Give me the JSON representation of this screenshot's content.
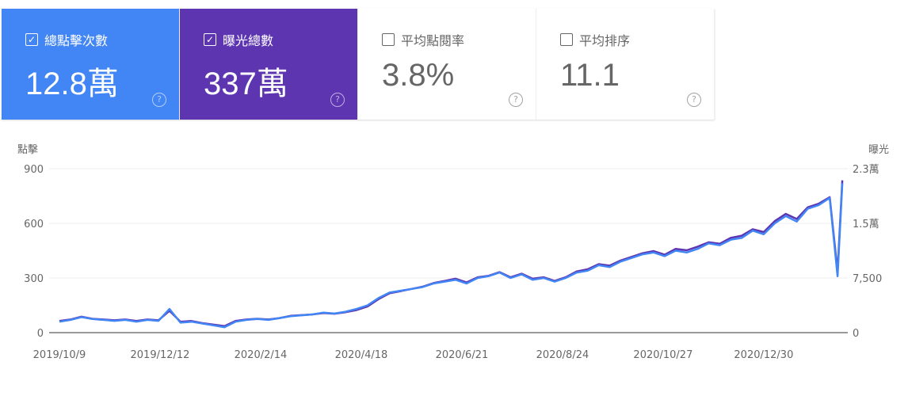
{
  "cards": [
    {
      "label": "總點擊次數",
      "value": "12.8萬",
      "checked": true,
      "color": "#4285f4"
    },
    {
      "label": "曝光總數",
      "value": "337萬",
      "checked": true,
      "color": "#5e35b1"
    },
    {
      "label": "平均點閱率",
      "value": "3.8%",
      "checked": false
    },
    {
      "label": "平均排序",
      "value": "11.1",
      "checked": false
    }
  ],
  "chart_data": {
    "type": "line",
    "y_left_label": "點擊",
    "y_right_label": "曝光",
    "y_left_ticks": [
      "900",
      "600",
      "300",
      "0"
    ],
    "y_right_ticks": [
      "2.3萬",
      "1.5萬",
      "7,500",
      "0"
    ],
    "ylim_left": [
      0,
      900
    ],
    "ylim_right": [
      0,
      22500
    ],
    "x_ticks": [
      "2019/10/9",
      "2019/12/12",
      "2020/2/14",
      "2020/4/18",
      "2020/6/21",
      "2020/8/24",
      "2020/10/27",
      "2020/12/30"
    ],
    "grid": true,
    "x": [
      "2019-10-09",
      "2019-10-16",
      "2019-10-23",
      "2019-10-30",
      "2019-11-06",
      "2019-11-13",
      "2019-11-20",
      "2019-11-27",
      "2019-12-04",
      "2019-12-11",
      "2019-12-18",
      "2019-12-25",
      "2020-01-01",
      "2020-01-08",
      "2020-01-15",
      "2020-01-22",
      "2020-01-29",
      "2020-02-05",
      "2020-02-12",
      "2020-02-19",
      "2020-02-26",
      "2020-03-04",
      "2020-03-11",
      "2020-03-18",
      "2020-03-25",
      "2020-04-01",
      "2020-04-08",
      "2020-04-15",
      "2020-04-22",
      "2020-04-29",
      "2020-05-06",
      "2020-05-13",
      "2020-05-20",
      "2020-05-27",
      "2020-06-03",
      "2020-06-10",
      "2020-06-17",
      "2020-06-24",
      "2020-07-01",
      "2020-07-08",
      "2020-07-15",
      "2020-07-22",
      "2020-07-29",
      "2020-08-05",
      "2020-08-12",
      "2020-08-19",
      "2020-08-26",
      "2020-09-02",
      "2020-09-09",
      "2020-09-16",
      "2020-09-23",
      "2020-09-30",
      "2020-10-07",
      "2020-10-14",
      "2020-10-21",
      "2020-10-28",
      "2020-11-04",
      "2020-11-11",
      "2020-11-18",
      "2020-11-25",
      "2020-12-02",
      "2020-12-09",
      "2020-12-16",
      "2020-12-23",
      "2020-12-30",
      "2021-01-06",
      "2021-01-13",
      "2021-01-20",
      "2021-01-27",
      "2021-02-03",
      "2021-02-10",
      "2021-02-15",
      "2021-02-18"
    ],
    "series": [
      {
        "name": "總點擊次數",
        "axis": "left",
        "color": "#4285f4",
        "values": [
          60,
          70,
          85,
          75,
          70,
          65,
          70,
          60,
          70,
          65,
          130,
          55,
          60,
          50,
          40,
          30,
          60,
          70,
          75,
          70,
          80,
          90,
          95,
          100,
          110,
          105,
          115,
          130,
          150,
          190,
          220,
          230,
          240,
          250,
          270,
          280,
          290,
          270,
          300,
          310,
          330,
          300,
          320,
          290,
          300,
          280,
          300,
          330,
          340,
          370,
          360,
          390,
          410,
          430,
          440,
          420,
          450,
          440,
          460,
          490,
          480,
          510,
          520,
          560,
          540,
          600,
          640,
          610,
          680,
          700,
          740,
          310,
          820
        ]
      },
      {
        "name": "曝光總數",
        "axis": "right",
        "color": "#5e35b1",
        "values": [
          1600,
          1800,
          2200,
          1900,
          1800,
          1700,
          1800,
          1600,
          1800,
          1700,
          3000,
          1500,
          1600,
          1300,
          1100,
          900,
          1600,
          1800,
          1900,
          1800,
          2000,
          2300,
          2400,
          2500,
          2700,
          2600,
          2800,
          3100,
          3600,
          4600,
          5400,
          5700,
          6000,
          6300,
          6800,
          7100,
          7400,
          6900,
          7600,
          7800,
          8300,
          7600,
          8100,
          7400,
          7600,
          7100,
          7600,
          8400,
          8700,
          9400,
          9200,
          9900,
          10400,
          10900,
          11200,
          10700,
          11500,
          11300,
          11800,
          12400,
          12200,
          13000,
          13300,
          14200,
          13800,
          15300,
          16300,
          15600,
          17200,
          17700,
          18600,
          8400,
          20900
        ]
      }
    ]
  }
}
